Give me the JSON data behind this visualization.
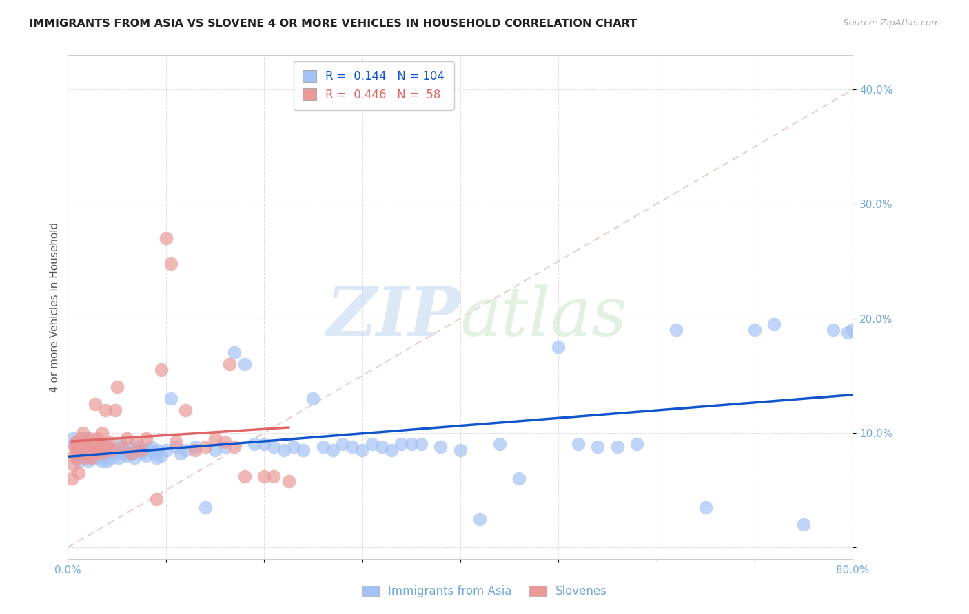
{
  "title": "IMMIGRANTS FROM ASIA VS SLOVENE 4 OR MORE VEHICLES IN HOUSEHOLD CORRELATION CHART",
  "source": "Source: ZipAtlas.com",
  "ylabel": "4 or more Vehicles in Household",
  "xlim": [
    0.0,
    0.8
  ],
  "ylim": [
    -0.01,
    0.43
  ],
  "xticks": [
    0.0,
    0.1,
    0.2,
    0.3,
    0.4,
    0.5,
    0.6,
    0.7,
    0.8
  ],
  "yticks": [
    0.0,
    0.1,
    0.2,
    0.3,
    0.4
  ],
  "xtick_labels": [
    "0.0%",
    "",
    "",
    "",
    "",
    "",
    "",
    "",
    "80.0%"
  ],
  "ytick_labels": [
    "",
    "10.0%",
    "20.0%",
    "30.0%",
    "40.0%"
  ],
  "blue_R": 0.144,
  "blue_N": 104,
  "pink_R": 0.446,
  "pink_N": 58,
  "blue_color": "#a4c2f4",
  "pink_color": "#ea9999",
  "blue_line_color": "#1155cc",
  "pink_line_color": "#e06666",
  "ref_line_color": "#cccccc",
  "legend_label_blue": "Immigrants from Asia",
  "legend_label_pink": "Slovenes",
  "blue_scatter_x": [
    0.005,
    0.007,
    0.008,
    0.01,
    0.011,
    0.012,
    0.013,
    0.015,
    0.016,
    0.017,
    0.018,
    0.019,
    0.02,
    0.02,
    0.021,
    0.022,
    0.023,
    0.024,
    0.025,
    0.026,
    0.027,
    0.028,
    0.03,
    0.031,
    0.032,
    0.033,
    0.034,
    0.035,
    0.036,
    0.037,
    0.038,
    0.039,
    0.04,
    0.041,
    0.042,
    0.045,
    0.047,
    0.05,
    0.052,
    0.054,
    0.056,
    0.058,
    0.06,
    0.062,
    0.065,
    0.068,
    0.07,
    0.072,
    0.075,
    0.078,
    0.08,
    0.083,
    0.085,
    0.088,
    0.09,
    0.092,
    0.095,
    0.1,
    0.105,
    0.11,
    0.115,
    0.12,
    0.13,
    0.14,
    0.15,
    0.16,
    0.17,
    0.18,
    0.19,
    0.2,
    0.21,
    0.22,
    0.23,
    0.24,
    0.25,
    0.26,
    0.27,
    0.28,
    0.29,
    0.3,
    0.31,
    0.32,
    0.33,
    0.34,
    0.35,
    0.36,
    0.38,
    0.4,
    0.42,
    0.44,
    0.46,
    0.5,
    0.52,
    0.54,
    0.56,
    0.58,
    0.62,
    0.65,
    0.7,
    0.72,
    0.75,
    0.78,
    0.795,
    0.8
  ],
  "blue_scatter_y": [
    0.095,
    0.09,
    0.08,
    0.085,
    0.075,
    0.088,
    0.092,
    0.08,
    0.085,
    0.09,
    0.082,
    0.095,
    0.08,
    0.088,
    0.075,
    0.082,
    0.09,
    0.078,
    0.085,
    0.083,
    0.08,
    0.088,
    0.078,
    0.082,
    0.085,
    0.088,
    0.08,
    0.075,
    0.082,
    0.078,
    0.08,
    0.085,
    0.075,
    0.082,
    0.088,
    0.078,
    0.085,
    0.082,
    0.078,
    0.09,
    0.085,
    0.082,
    0.08,
    0.088,
    0.082,
    0.078,
    0.085,
    0.088,
    0.082,
    0.085,
    0.08,
    0.085,
    0.088,
    0.082,
    0.078,
    0.085,
    0.08,
    0.085,
    0.13,
    0.088,
    0.082,
    0.085,
    0.088,
    0.035,
    0.085,
    0.088,
    0.17,
    0.16,
    0.09,
    0.09,
    0.088,
    0.085,
    0.088,
    0.085,
    0.13,
    0.088,
    0.085,
    0.09,
    0.088,
    0.085,
    0.09,
    0.088,
    0.085,
    0.09,
    0.09,
    0.09,
    0.088,
    0.085,
    0.025,
    0.09,
    0.06,
    0.175,
    0.09,
    0.088,
    0.088,
    0.09,
    0.19,
    0.035,
    0.19,
    0.195,
    0.02,
    0.19,
    0.188,
    0.19
  ],
  "pink_scatter_x": [
    0.004,
    0.005,
    0.006,
    0.007,
    0.008,
    0.009,
    0.01,
    0.011,
    0.012,
    0.013,
    0.014,
    0.015,
    0.016,
    0.017,
    0.018,
    0.019,
    0.02,
    0.021,
    0.022,
    0.023,
    0.024,
    0.025,
    0.026,
    0.027,
    0.028,
    0.03,
    0.032,
    0.034,
    0.035,
    0.036,
    0.038,
    0.04,
    0.042,
    0.045,
    0.048,
    0.05,
    0.055,
    0.06,
    0.065,
    0.07,
    0.075,
    0.08,
    0.09,
    0.095,
    0.1,
    0.105,
    0.11,
    0.12,
    0.13,
    0.14,
    0.15,
    0.16,
    0.165,
    0.17,
    0.18,
    0.2,
    0.21,
    0.225
  ],
  "pink_scatter_y": [
    0.06,
    0.072,
    0.08,
    0.088,
    0.092,
    0.085,
    0.078,
    0.065,
    0.09,
    0.095,
    0.082,
    0.1,
    0.088,
    0.092,
    0.078,
    0.085,
    0.082,
    0.09,
    0.095,
    0.088,
    0.078,
    0.082,
    0.085,
    0.09,
    0.125,
    0.095,
    0.088,
    0.082,
    0.1,
    0.085,
    0.12,
    0.088,
    0.092,
    0.085,
    0.12,
    0.14,
    0.088,
    0.095,
    0.082,
    0.092,
    0.085,
    0.095,
    0.042,
    0.155,
    0.27,
    0.248,
    0.092,
    0.12,
    0.085,
    0.088,
    0.095,
    0.092,
    0.16,
    0.088,
    0.062,
    0.062,
    0.062,
    0.058
  ]
}
